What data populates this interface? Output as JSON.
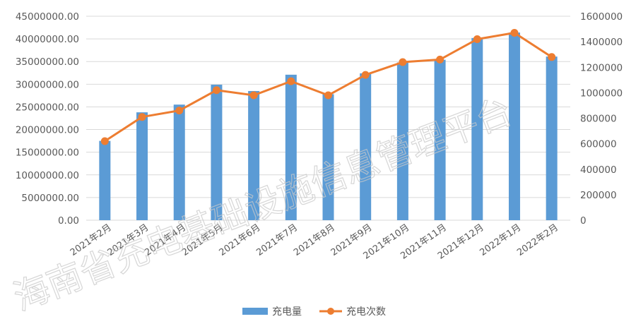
{
  "chart_data": {
    "type": "bar+line",
    "categories": [
      "2021年2月",
      "2021年3月",
      "2021年4月",
      "2021年5月",
      "2021年6月",
      "2021年7月",
      "2021年8月",
      "2021年9月",
      "2021年10月",
      "2021年11月",
      "2021年12月",
      "2022年1月",
      "2022年2月"
    ],
    "series": [
      {
        "name": "充电量",
        "type": "bar",
        "axis": "left",
        "color": "#5b9bd5",
        "values": [
          17500000,
          23800000,
          25500000,
          29900000,
          28500000,
          32100000,
          27800000,
          32400000,
          34800000,
          35400000,
          40200000,
          41400000,
          36100000
        ]
      },
      {
        "name": "充电次数",
        "type": "line",
        "axis": "right",
        "color": "#ed7d31",
        "values": [
          620000,
          810000,
          860000,
          1020000,
          980000,
          1090000,
          980000,
          1140000,
          1240000,
          1260000,
          1420000,
          1470000,
          1280000
        ]
      }
    ],
    "y_left": {
      "min": 0,
      "max": 45000000,
      "step": 5000000,
      "ticks": [
        "0.00",
        "5000000.00",
        "10000000.00",
        "15000000.00",
        "20000000.00",
        "25000000.00",
        "30000000.00",
        "35000000.00",
        "40000000.00",
        "45000000.00"
      ]
    },
    "y_right": {
      "min": 0,
      "max": 1600000,
      "step": 200000,
      "ticks": [
        "0",
        "200000",
        "400000",
        "600000",
        "800000",
        "1000000",
        "1200000",
        "1400000",
        "1600000"
      ]
    },
    "grid": true,
    "legend_position": "bottom",
    "watermark": "海南省充电基础设施信息管理平台"
  }
}
